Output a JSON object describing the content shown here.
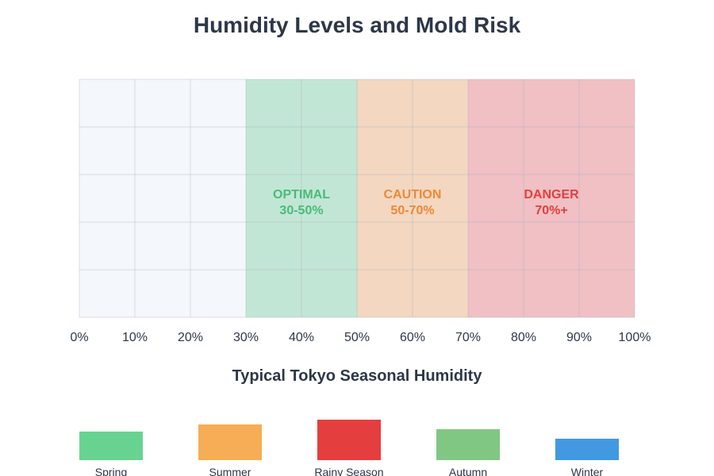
{
  "chart_data": [
    {
      "type": "bar",
      "title": "Humidity Levels and Mold Risk",
      "xlim": [
        0,
        100
      ],
      "x_ticks": [
        "0%",
        "10%",
        "20%",
        "30%",
        "40%",
        "50%",
        "60%",
        "70%",
        "80%",
        "90%",
        "100%"
      ],
      "grid": true,
      "zones": [
        {
          "from": 0,
          "to": 30,
          "label": "",
          "range_label": "",
          "color": "#f4f7fb",
          "text_color": ""
        },
        {
          "from": 30,
          "to": 50,
          "label": "OPTIMAL",
          "range_label": "30-50%",
          "color": "#c2e6d5",
          "text_color": "#48bb78"
        },
        {
          "from": 50,
          "to": 70,
          "label": "CAUTION",
          "range_label": "50-70%",
          "color": "#f3d7c0",
          "text_color": "#ed8936"
        },
        {
          "from": 70,
          "to": 100,
          "label": "DANGER",
          "range_label": "70%+",
          "color": "#f0c0c4",
          "text_color": "#e53e3e"
        }
      ]
    },
    {
      "type": "bar",
      "title": "Typical Tokyo Seasonal Humidity",
      "categories": [
        "Spring",
        "Summer",
        "Rainy Season",
        "Autumn",
        "Winter"
      ],
      "values": [
        60,
        75,
        85,
        65,
        45
      ],
      "colors": [
        "#68d391",
        "#f6ad55",
        "#e53e3e",
        "#81c784",
        "#4299e1"
      ]
    }
  ]
}
